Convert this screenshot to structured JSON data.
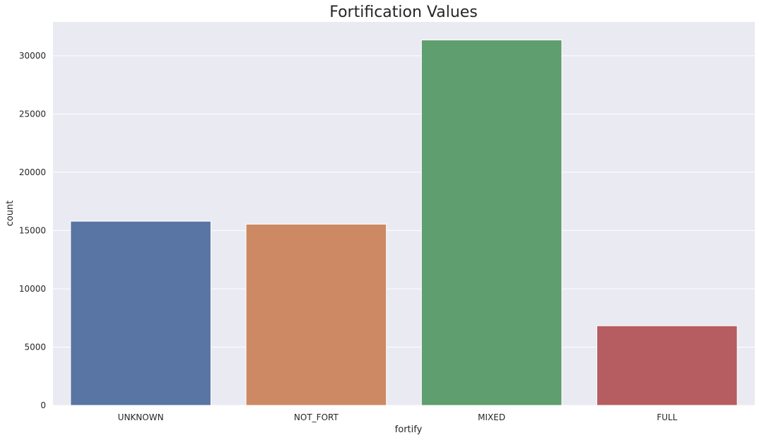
{
  "chart_data": {
    "type": "bar",
    "title": "Fortification Values",
    "xlabel": "fortify",
    "ylabel": "count",
    "categories": [
      "UNKNOWN",
      "NOT_FORT",
      "MIXED",
      "FULL"
    ],
    "values": [
      15800,
      15550,
      31350,
      6830
    ],
    "ylim": [
      0,
      32900
    ],
    "yticks": [
      0,
      5000,
      10000,
      15000,
      20000,
      25000,
      30000
    ],
    "ytick_labels": [
      "0",
      "5000",
      "10000",
      "15000",
      "20000",
      "25000",
      "30000"
    ],
    "grid": true,
    "legend": "none",
    "colors": [
      "#5975a4",
      "#cc8963",
      "#5f9e6e",
      "#b55d60"
    ],
    "plot_background": "#eaeaf2",
    "grid_color": "#ffffff"
  }
}
